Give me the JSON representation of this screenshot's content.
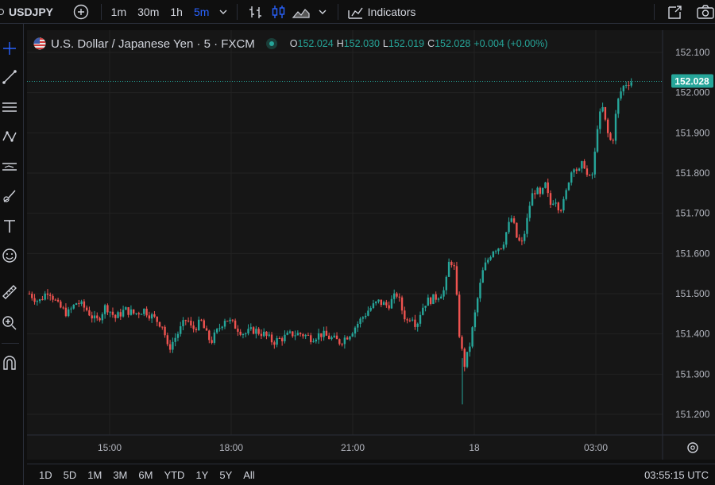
{
  "toolbar": {
    "symbol": "USDJPY",
    "intervals": [
      "1m",
      "30m",
      "1h",
      "5m"
    ],
    "active_interval": "5m",
    "indicators_label": "Indicators"
  },
  "legend": {
    "title": "U.S. Dollar / Japanese Yen · 5 · FXCM",
    "o_label": "O",
    "o_value": "152.024",
    "h_label": "H",
    "h_value": "152.030",
    "l_label": "L",
    "l_value": "152.019",
    "c_label": "C",
    "c_value": "152.028",
    "change": "+0.004 (+0.00%)"
  },
  "colors": {
    "up": "#26a69a",
    "down": "#ef5350",
    "accent": "#2962ff",
    "bg": "#161616"
  },
  "bottom": {
    "ranges": [
      "1D",
      "5D",
      "1M",
      "3M",
      "6M",
      "YTD",
      "1Y",
      "5Y",
      "All"
    ],
    "clock": "03:55:15 UTC"
  },
  "chart_data": {
    "type": "candlestick",
    "y_axis_ticks": [
      "152.100",
      "152.000",
      "151.900",
      "151.800",
      "151.700",
      "151.600",
      "151.500",
      "151.400",
      "151.300",
      "151.200"
    ],
    "ylim": [
      151.14,
      152.14
    ],
    "x_axis_ticks": [
      "15:00",
      "18:00",
      "21:00",
      "18",
      "03:00"
    ],
    "last_price": "152.028",
    "close_path": [
      [
        0,
        151.5
      ],
      [
        4,
        151.48
      ],
      [
        8,
        151.51
      ],
      [
        12,
        151.47
      ],
      [
        16,
        151.45
      ],
      [
        20,
        151.48
      ],
      [
        24,
        151.46
      ],
      [
        28,
        151.43
      ],
      [
        32,
        151.47
      ],
      [
        36,
        151.44
      ],
      [
        40,
        151.46
      ],
      [
        44,
        151.45
      ],
      [
        48,
        151.46
      ],
      [
        52,
        151.44
      ],
      [
        56,
        151.42
      ],
      [
        58,
        151.36
      ],
      [
        60,
        151.38
      ],
      [
        62,
        151.4
      ],
      [
        64,
        151.42
      ],
      [
        66,
        151.44
      ],
      [
        68,
        151.41
      ],
      [
        72,
        151.43
      ],
      [
        74,
        151.4
      ],
      [
        76,
        151.38
      ],
      [
        78,
        151.4
      ],
      [
        80,
        151.42
      ],
      [
        82,
        151.44
      ],
      [
        86,
        151.42
      ],
      [
        90,
        151.4
      ],
      [
        94,
        151.41
      ],
      [
        98,
        151.4
      ],
      [
        102,
        151.38
      ],
      [
        106,
        151.39
      ],
      [
        110,
        151.4
      ],
      [
        114,
        151.4
      ],
      [
        118,
        151.39
      ],
      [
        122,
        151.4
      ],
      [
        126,
        151.39
      ],
      [
        130,
        151.38
      ],
      [
        134,
        151.4
      ],
      [
        138,
        151.43
      ],
      [
        142,
        151.46
      ],
      [
        146,
        151.48
      ],
      [
        150,
        151.47
      ],
      [
        154,
        151.5
      ],
      [
        156,
        151.46
      ],
      [
        158,
        151.43
      ],
      [
        160,
        151.45
      ],
      [
        162,
        151.42
      ],
      [
        164,
        151.46
      ],
      [
        166,
        151.48
      ],
      [
        170,
        151.49
      ],
      [
        174,
        151.51
      ],
      [
        176,
        151.59
      ],
      [
        178,
        151.56
      ],
      [
        180,
        151.4
      ],
      [
        182,
        151.32
      ],
      [
        184,
        151.36
      ],
      [
        186,
        151.43
      ],
      [
        188,
        151.5
      ],
      [
        190,
        151.56
      ],
      [
        194,
        151.61
      ],
      [
        198,
        151.62
      ],
      [
        200,
        151.66
      ],
      [
        202,
        151.69
      ],
      [
        204,
        151.64
      ],
      [
        206,
        151.62
      ],
      [
        208,
        151.67
      ],
      [
        210,
        151.74
      ],
      [
        212,
        151.76
      ],
      [
        214,
        151.74
      ],
      [
        216,
        151.77
      ],
      [
        218,
        151.72
      ],
      [
        220,
        151.74
      ],
      [
        222,
        151.71
      ],
      [
        224,
        151.73
      ],
      [
        226,
        151.79
      ],
      [
        228,
        151.82
      ],
      [
        230,
        151.8
      ],
      [
        232,
        151.83
      ],
      [
        234,
        151.78
      ],
      [
        236,
        151.8
      ],
      [
        238,
        151.93
      ],
      [
        240,
        151.96
      ],
      [
        242,
        151.9
      ],
      [
        244,
        151.87
      ],
      [
        246,
        151.97
      ],
      [
        248,
        152.01
      ],
      [
        250,
        152.025
      ],
      [
        252,
        152.028
      ]
    ]
  }
}
